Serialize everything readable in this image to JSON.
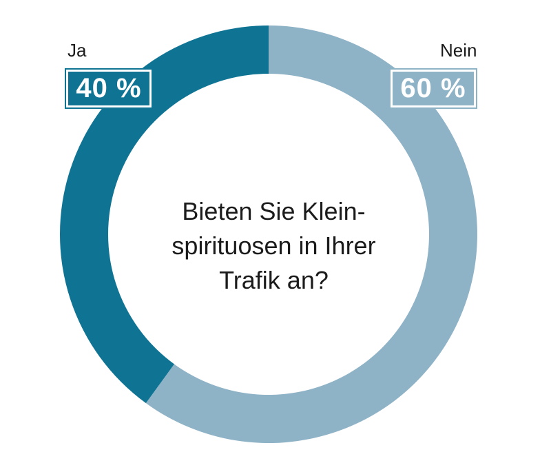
{
  "chart_data": {
    "type": "pie",
    "style": "donut",
    "question": [
      "Bieten Sie Klein-",
      "spirituosen in Ihrer",
      "Trafik an?"
    ],
    "slices": [
      {
        "name": "Ja",
        "value": 40,
        "label": "40 %",
        "color": "#0f7494"
      },
      {
        "name": "Nein",
        "value": 60,
        "label": "60 %",
        "color": "#8eb2c6"
      }
    ]
  }
}
